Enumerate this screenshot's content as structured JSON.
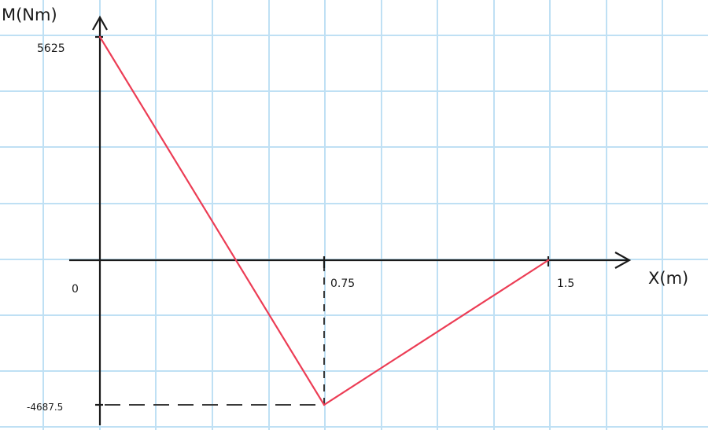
{
  "chart_data": {
    "type": "line",
    "xlabel": "X(m)",
    "ylabel": "M(Nm)",
    "origin_label": "0",
    "x_ticks": [
      "0.75",
      "1.5"
    ],
    "y_ticks": [
      "5625",
      "-4687.5"
    ],
    "x_range": [
      0,
      1.5
    ],
    "y_range": [
      -4687.5,
      5625
    ],
    "grid": true,
    "series": [
      {
        "x": [
          0,
          0.75,
          1.5
        ],
        "y": [
          5625,
          -4687.5,
          0
        ]
      }
    ],
    "guides": [
      {
        "from": [
          0,
          -4687.5
        ],
        "to": [
          0.75,
          -4687.5
        ]
      },
      {
        "from": [
          0.75,
          -4687.5
        ],
        "to": [
          0.75,
          0
        ]
      }
    ],
    "colors": {
      "series": "#ec3d55",
      "grid": "#bfe0f4",
      "axes": "#1a1a1a"
    }
  }
}
